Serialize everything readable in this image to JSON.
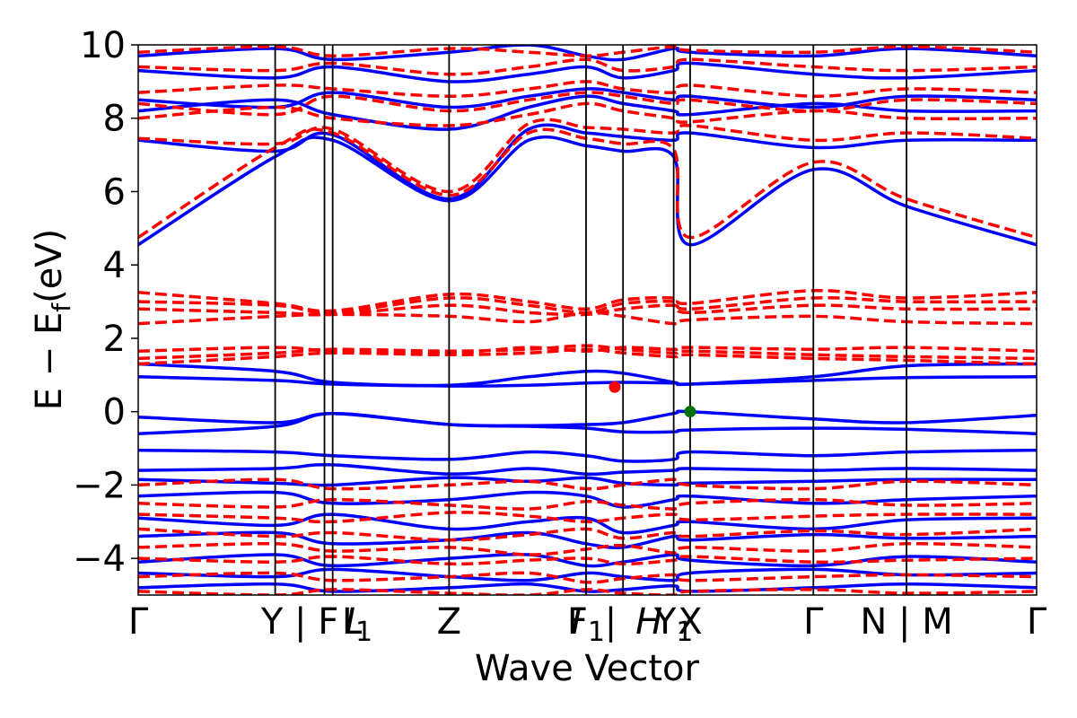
{
  "chart_data": {
    "type": "line",
    "title": "",
    "xlabel": "Wave Vector",
    "ylabel": "E − E",
    "ylabel_sub": "f",
    "ylabel_unit": "(eV)",
    "ylim": [
      -5,
      10
    ],
    "yticks": [
      {
        "value": -4,
        "label": "−4"
      },
      {
        "value": -2,
        "label": "−2"
      },
      {
        "value": 0,
        "label": "0"
      },
      {
        "value": 2,
        "label": "2"
      },
      {
        "value": 4,
        "label": "4"
      },
      {
        "value": 6,
        "label": "6"
      },
      {
        "value": 8,
        "label": "8"
      },
      {
        "value": 10,
        "label": "10"
      }
    ],
    "xlim": [
      0,
      6.56
    ],
    "kpoint_lines": [
      1.0,
      1.36,
      1.42,
      2.27,
      3.27,
      3.54,
      3.91,
      4.03,
      4.93,
      5.61
    ],
    "xtick_labels": [
      {
        "x": 0.0,
        "text": "Γ",
        "italic": false
      },
      {
        "x": 1.18,
        "text": "Y | F",
        "italic": false
      },
      {
        "x": 1.56,
        "text": "L",
        "italic": false
      },
      {
        "x": 1.61,
        "text": "I",
        "sub": "1",
        "italic": true
      },
      {
        "x": 2.27,
        "text": "Z",
        "italic": false
      },
      {
        "x": 3.2,
        "text": "I",
        "italic": true
      },
      {
        "x": 3.27,
        "text": "F",
        "sub": "1",
        "italic": false
      },
      {
        "x": 3.45,
        "text": "|",
        "italic": false
      },
      {
        "x": 3.73,
        "text": "H",
        "italic": true
      },
      {
        "x": 3.91,
        "text": "Y",
        "sub": "1",
        "italic": false
      },
      {
        "x": 4.03,
        "text": "X",
        "italic": false
      },
      {
        "x": 4.93,
        "text": "Γ",
        "italic": false
      },
      {
        "x": 5.61,
        "text": "N | M",
        "italic": false
      },
      {
        "x": 6.56,
        "text": "Γ",
        "italic": false
      }
    ],
    "series": [
      {
        "style": "solid",
        "color": "#0000ff",
        "bands": [
          [
            0.95,
            0.85,
            0.75,
            0.7,
            0.72,
            0.78,
            0.8,
            0.78,
            0.75,
            0.85,
            0.93,
            0.95
          ],
          [
            1.3,
            1.1,
            0.8,
            0.72,
            0.95,
            1.1,
            1.05,
            0.8,
            0.75,
            0.95,
            1.25,
            1.3
          ],
          [
            -0.15,
            -0.3,
            -0.05,
            -0.35,
            -0.38,
            -0.35,
            -0.3,
            -0.05,
            0.0,
            -0.2,
            -0.3,
            -0.1
          ],
          [
            -0.6,
            -0.4,
            -0.05,
            -0.35,
            -0.4,
            -0.45,
            -0.55,
            -0.55,
            -0.5,
            -0.45,
            -0.48,
            -0.6
          ],
          [
            -1.05,
            -1.1,
            -1.2,
            -1.3,
            -1.1,
            -1.2,
            -1.35,
            -1.3,
            -1.1,
            -1.2,
            -1.1,
            -1.05
          ],
          [
            -1.6,
            -1.55,
            -1.45,
            -1.7,
            -1.55,
            -1.7,
            -1.65,
            -1.6,
            -1.55,
            -1.6,
            -1.55,
            -1.6
          ],
          [
            -1.85,
            -1.95,
            -2.0,
            -1.8,
            -1.9,
            -1.8,
            -1.95,
            -2.0,
            -1.95,
            -1.9,
            -1.85,
            -1.85
          ],
          [
            -2.3,
            -2.2,
            -2.5,
            -2.4,
            -2.2,
            -2.3,
            -2.6,
            -2.4,
            -2.3,
            -2.5,
            -2.4,
            -2.3
          ],
          [
            -2.9,
            -3.1,
            -2.8,
            -3.2,
            -3.0,
            -2.9,
            -3.3,
            -3.1,
            -3.0,
            -3.2,
            -2.95,
            -2.9
          ],
          [
            -3.4,
            -3.3,
            -3.6,
            -3.5,
            -3.3,
            -3.6,
            -3.7,
            -3.4,
            -3.5,
            -3.35,
            -3.45,
            -3.4
          ],
          [
            -4.1,
            -3.9,
            -4.2,
            -4.0,
            -3.9,
            -4.2,
            -4.1,
            -3.9,
            -4.05,
            -4.2,
            -3.95,
            -4.1
          ],
          [
            -4.4,
            -4.5,
            -4.3,
            -4.5,
            -4.6,
            -4.4,
            -4.5,
            -4.6,
            -4.4,
            -4.3,
            -4.45,
            -4.4
          ],
          [
            -4.8,
            -4.7,
            -4.9,
            -4.8,
            -4.7,
            -4.9,
            -4.85,
            -4.75,
            -4.9,
            -4.8,
            -4.7,
            -4.8
          ],
          [
            4.55,
            6.95,
            7.4,
            5.75,
            7.4,
            7.25,
            7.1,
            6.95,
            4.55,
            6.6,
            5.6,
            4.55
          ],
          [
            7.4,
            7.1,
            7.55,
            5.8,
            7.7,
            7.6,
            7.5,
            7.4,
            7.6,
            7.2,
            7.4,
            7.4
          ],
          [
            8.2,
            8.5,
            8.1,
            7.7,
            8.3,
            8.6,
            8.4,
            8.2,
            8.1,
            8.4,
            8.2,
            8.2
          ],
          [
            8.5,
            8.3,
            8.7,
            8.3,
            8.6,
            8.8,
            8.7,
            8.5,
            8.6,
            8.3,
            8.6,
            8.5
          ],
          [
            9.3,
            9.1,
            9.4,
            9.0,
            9.2,
            9.4,
            9.1,
            9.3,
            9.5,
            9.2,
            9.1,
            9.3
          ],
          [
            9.7,
            9.9,
            9.6,
            9.8,
            10.0,
            9.7,
            9.6,
            9.9,
            9.8,
            9.7,
            9.9,
            9.7
          ]
        ]
      },
      {
        "style": "dashed",
        "color": "#ff0000",
        "bands": [
          [
            1.3,
            1.5,
            1.6,
            1.55,
            1.6,
            1.7,
            1.6,
            1.5,
            1.55,
            1.45,
            1.4,
            1.3
          ],
          [
            1.45,
            1.6,
            1.7,
            1.65,
            1.7,
            1.8,
            1.7,
            1.6,
            1.65,
            1.55,
            1.5,
            1.45
          ],
          [
            1.65,
            1.75,
            1.65,
            1.6,
            1.75,
            1.65,
            1.75,
            1.7,
            1.75,
            1.7,
            1.75,
            1.65
          ],
          [
            2.4,
            2.6,
            2.65,
            2.6,
            2.45,
            2.7,
            2.6,
            2.4,
            2.5,
            2.6,
            2.45,
            2.4
          ],
          [
            2.8,
            2.7,
            2.65,
            2.9,
            2.7,
            2.65,
            2.8,
            2.9,
            2.7,
            2.9,
            2.8,
            2.8
          ],
          [
            3.0,
            2.9,
            2.7,
            3.1,
            2.9,
            2.7,
            2.95,
            3.0,
            2.8,
            3.1,
            3.0,
            3.0
          ],
          [
            3.25,
            2.95,
            2.75,
            3.2,
            3.0,
            2.8,
            3.05,
            3.1,
            2.95,
            3.3,
            3.1,
            3.25
          ],
          [
            4.75,
            7.2,
            7.6,
            5.9,
            7.6,
            7.45,
            7.3,
            7.15,
            4.75,
            6.8,
            5.8,
            4.75
          ],
          [
            7.45,
            7.3,
            7.7,
            6.0,
            7.85,
            7.75,
            7.7,
            7.6,
            7.8,
            7.4,
            7.6,
            7.45
          ],
          [
            8.0,
            8.3,
            8.0,
            7.8,
            8.1,
            8.4,
            8.2,
            8.0,
            7.9,
            8.2,
            8.0,
            8.0
          ],
          [
            8.4,
            8.1,
            8.6,
            8.2,
            8.5,
            8.7,
            8.6,
            8.4,
            8.5,
            8.2,
            8.5,
            8.4
          ],
          [
            8.7,
            8.9,
            8.8,
            8.6,
            8.8,
            9.0,
            8.8,
            8.7,
            8.9,
            8.6,
            8.8,
            8.7
          ],
          [
            9.4,
            9.3,
            9.5,
            9.2,
            9.4,
            9.6,
            9.3,
            9.4,
            9.6,
            9.4,
            9.3,
            9.4
          ],
          [
            9.8,
            9.95,
            9.7,
            9.9,
            9.8,
            9.7,
            9.8,
            9.95,
            9.85,
            9.8,
            9.95,
            9.8
          ],
          [
            -2.0,
            -1.85,
            -2.1,
            -2.0,
            -1.9,
            -2.1,
            -2.0,
            -1.85,
            -2.0,
            -2.1,
            -1.9,
            -2.0
          ],
          [
            -2.5,
            -2.6,
            -2.4,
            -2.55,
            -2.65,
            -2.45,
            -2.55,
            -2.65,
            -2.5,
            -2.4,
            -2.55,
            -2.5
          ],
          [
            -2.8,
            -2.9,
            -3.0,
            -2.75,
            -2.85,
            -3.0,
            -2.9,
            -2.8,
            -2.95,
            -2.85,
            -2.8,
            -2.8
          ],
          [
            -3.2,
            -3.4,
            -3.3,
            -3.5,
            -3.35,
            -3.2,
            -3.45,
            -3.3,
            -3.4,
            -3.25,
            -3.35,
            -3.2
          ],
          [
            -3.7,
            -3.6,
            -3.8,
            -3.7,
            -3.9,
            -3.75,
            -3.65,
            -3.85,
            -3.7,
            -3.8,
            -3.6,
            -3.7
          ],
          [
            -4.0,
            -4.1,
            -3.95,
            -4.15,
            -4.05,
            -4.0,
            -4.15,
            -4.05,
            -3.95,
            -4.1,
            -4.05,
            -4.0
          ],
          [
            -4.5,
            -4.4,
            -4.6,
            -4.5,
            -4.4,
            -4.65,
            -4.55,
            -4.45,
            -4.6,
            -4.5,
            -4.45,
            -4.5
          ],
          [
            -4.9,
            -5.0,
            -4.85,
            -4.95,
            -5.0,
            -4.85,
            -4.95,
            -5.0,
            -4.9,
            -4.85,
            -4.95,
            -4.9
          ]
        ]
      }
    ],
    "band_x": [
      0.0,
      1.0,
      1.42,
      2.27,
      2.85,
      3.27,
      3.54,
      3.91,
      4.03,
      4.93,
      5.61,
      6.56
    ],
    "markers": [
      {
        "x": 3.48,
        "y": 0.67,
        "color": "#ff0000"
      },
      {
        "x": 4.03,
        "y": 0.0,
        "color": "#007000"
      }
    ]
  }
}
